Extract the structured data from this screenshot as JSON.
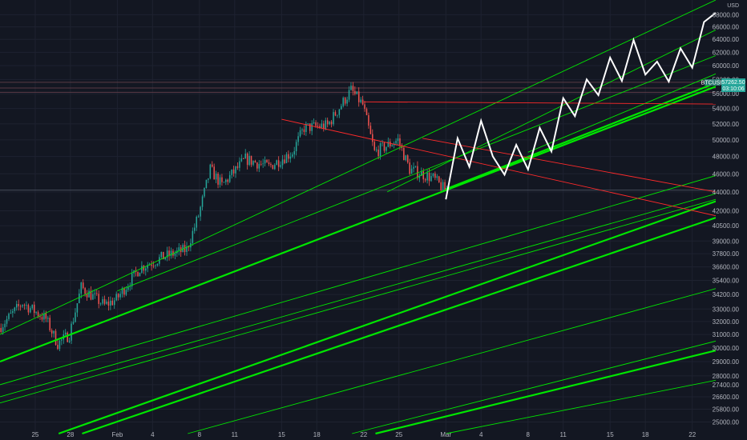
{
  "chart_data": {
    "type": "candlestick",
    "symbol": "BTCUSD",
    "currency": "USD",
    "last_price": "57262.50",
    "countdown": "03:10:06",
    "y_scale": "log",
    "ylim": [
      24300,
      70500
    ],
    "xlim": [
      "2021-01-22",
      "2021-03-24"
    ],
    "y_ticks": [
      "68000.00",
      "66000.00",
      "64000.00",
      "62000.00",
      "60000.00",
      "58000.00",
      "56000.00",
      "54000.00",
      "52000.00",
      "50000.00",
      "48000.00",
      "46000.00",
      "44000.00",
      "42000.00",
      "40500.00",
      "39000.00",
      "37800.00",
      "36600.00",
      "35400.00",
      "34200.00",
      "33000.00",
      "32000.00",
      "31000.00",
      "30000.00",
      "29000.00",
      "28000.00",
      "27400.00",
      "26600.00",
      "25800.00",
      "25000.00"
    ],
    "x_ticks": [
      {
        "label": "25",
        "date": "2021-01-25"
      },
      {
        "label": "28",
        "date": "2021-01-28"
      },
      {
        "label": "Feb",
        "date": "2021-02-01"
      },
      {
        "label": "4",
        "date": "2021-02-04"
      },
      {
        "label": "8",
        "date": "2021-02-08"
      },
      {
        "label": "11",
        "date": "2021-02-11"
      },
      {
        "label": "15",
        "date": "2021-02-15"
      },
      {
        "label": "18",
        "date": "2021-02-18"
      },
      {
        "label": "22",
        "date": "2021-02-22"
      },
      {
        "label": "25",
        "date": "2021-02-25"
      },
      {
        "label": "Mar",
        "date": "2021-03-01"
      },
      {
        "label": "4",
        "date": "2021-03-04"
      },
      {
        "label": "8",
        "date": "2021-03-08"
      },
      {
        "label": "11",
        "date": "2021-03-11"
      },
      {
        "label": "15",
        "date": "2021-03-15"
      },
      {
        "label": "18",
        "date": "2021-03-18"
      },
      {
        "label": "22",
        "date": "2021-03-22"
      }
    ],
    "price_path": [
      [
        "2021-01-22",
        31500
      ],
      [
        "2021-01-24",
        33500
      ],
      [
        "2021-01-26",
        32200
      ],
      [
        "2021-01-27",
        30300
      ],
      [
        "2021-01-28",
        31000
      ],
      [
        "2021-01-29",
        34800
      ],
      [
        "2021-01-31",
        33300
      ],
      [
        "2021-02-01",
        33800
      ],
      [
        "2021-02-03",
        36500
      ],
      [
        "2021-02-05",
        37500
      ],
      [
        "2021-02-07",
        38200
      ],
      [
        "2021-02-08",
        41500
      ],
      [
        "2021-02-09",
        46500
      ],
      [
        "2021-02-10",
        44700
      ],
      [
        "2021-02-12",
        47700
      ],
      [
        "2021-02-14",
        46800
      ],
      [
        "2021-02-16",
        48500
      ],
      [
        "2021-02-17",
        51500
      ],
      [
        "2021-02-19",
        51800
      ],
      [
        "2021-02-21",
        56500
      ],
      [
        "2021-02-22",
        54500
      ],
      [
        "2021-02-23",
        48500
      ],
      [
        "2021-02-25",
        50000
      ],
      [
        "2021-02-26",
        46500
      ],
      [
        "2021-02-28",
        45500
      ],
      [
        "2021-03-01",
        44200
      ]
    ],
    "projection_path": [
      [
        "2021-03-01",
        43200
      ],
      [
        "2021-03-02",
        50200
      ],
      [
        "2021-03-03",
        46800
      ],
      [
        "2021-03-04",
        52400
      ],
      [
        "2021-03-05",
        48000
      ],
      [
        "2021-03-06",
        45900
      ],
      [
        "2021-03-07",
        49400
      ],
      [
        "2021-03-08",
        46500
      ],
      [
        "2021-03-09",
        51500
      ],
      [
        "2021-03-10",
        48600
      ],
      [
        "2021-03-11",
        55400
      ],
      [
        "2021-03-12",
        53000
      ],
      [
        "2021-03-13",
        58000
      ],
      [
        "2021-03-14",
        55800
      ],
      [
        "2021-03-15",
        61200
      ],
      [
        "2021-03-16",
        57800
      ],
      [
        "2021-03-17",
        63900
      ],
      [
        "2021-03-18",
        58700
      ],
      [
        "2021-03-19",
        60600
      ],
      [
        "2021-03-20",
        57700
      ],
      [
        "2021-03-21",
        62600
      ],
      [
        "2021-03-22",
        59700
      ],
      [
        "2021-03-23",
        66800
      ],
      [
        "2021-03-24",
        68300
      ]
    ],
    "trend_lines": [
      {
        "color": "#00e600",
        "weight": 3,
        "from": [
          "2021-01-22",
          29000
        ],
        "to": [
          "2021-03-24",
          57000
        ]
      },
      {
        "color": "#00e600",
        "weight": 3,
        "from": [
          "2021-03-01",
          44300
        ],
        "to": [
          "2021-03-24",
          57500
        ]
      },
      {
        "color": "#00e600",
        "weight": 1,
        "from": [
          "2021-01-22",
          31000
        ],
        "to": [
          "2021-03-24",
          70500
        ]
      },
      {
        "color": "#00e600",
        "weight": 1,
        "from": [
          "2021-02-01",
          34500
        ],
        "to": [
          "2021-03-24",
          61500
        ]
      },
      {
        "color": "#00e600",
        "weight": 1,
        "from": [
          "2021-03-08",
          48500
        ],
        "to": [
          "2021-03-24",
          58800
        ]
      },
      {
        "color": "#00e600",
        "weight": 1,
        "from": [
          "2021-02-24",
          44000
        ],
        "to": [
          "2021-03-24",
          65500
        ]
      },
      {
        "color": "#00e600",
        "weight": 1,
        "from": [
          "2021-01-22",
          27400
        ],
        "to": [
          "2021-03-24",
          45800
        ]
      },
      {
        "color": "#00e600",
        "weight": 1,
        "from": [
          "2021-01-22",
          26600
        ],
        "to": [
          "2021-03-24",
          43800
        ]
      },
      {
        "color": "#00e600",
        "weight": 1,
        "from": [
          "2021-01-22",
          26200
        ],
        "to": [
          "2021-03-24",
          43200
        ]
      },
      {
        "color": "#00e600",
        "weight": 3,
        "from": [
          "2021-01-27",
          24300
        ],
        "to": [
          "2021-03-24",
          43000
        ]
      },
      {
        "color": "#00e600",
        "weight": 3,
        "from": [
          "2021-01-29",
          24300
        ],
        "to": [
          "2021-03-24",
          41300
        ]
      },
      {
        "color": "#00e600",
        "weight": 1,
        "from": [
          "2021-02-07",
          24300
        ],
        "to": [
          "2021-03-24",
          34700
        ]
      },
      {
        "color": "#00e600",
        "weight": 3,
        "from": [
          "2021-02-23",
          24300
        ],
        "to": [
          "2021-03-24",
          29800
        ]
      },
      {
        "color": "#00e600",
        "weight": 1,
        "from": [
          "2021-02-21",
          24300
        ],
        "to": [
          "2021-03-24",
          30500
        ]
      },
      {
        "color": "#00e600",
        "weight": 1,
        "from": [
          "2021-03-01",
          24300
        ],
        "to": [
          "2021-03-24",
          27700
        ]
      },
      {
        "color": "#ff2a2a",
        "weight": 1,
        "from": [
          "2021-02-15",
          52600
        ],
        "to": [
          "2021-03-24",
          41500
        ]
      },
      {
        "color": "#ff2a2a",
        "weight": 1,
        "from": [
          "2021-02-22",
          54900
        ],
        "to": [
          "2021-03-24",
          54600
        ]
      },
      {
        "color": "#ff2a2a",
        "weight": 1,
        "from": [
          "2021-02-27",
          50200
        ],
        "to": [
          "2021-03-24",
          44000
        ]
      }
    ],
    "horizontal_levels": [
      57600,
      56800,
      56200,
      44200
    ]
  },
  "colors": {
    "background": "#131722",
    "grid": "#1e2230",
    "up": "#26a69a",
    "down": "#ef5350",
    "projection": "#ffffff",
    "level": "#454b5a",
    "price_badge": "#26a69a",
    "symbol_badge": "#2f7a73"
  }
}
